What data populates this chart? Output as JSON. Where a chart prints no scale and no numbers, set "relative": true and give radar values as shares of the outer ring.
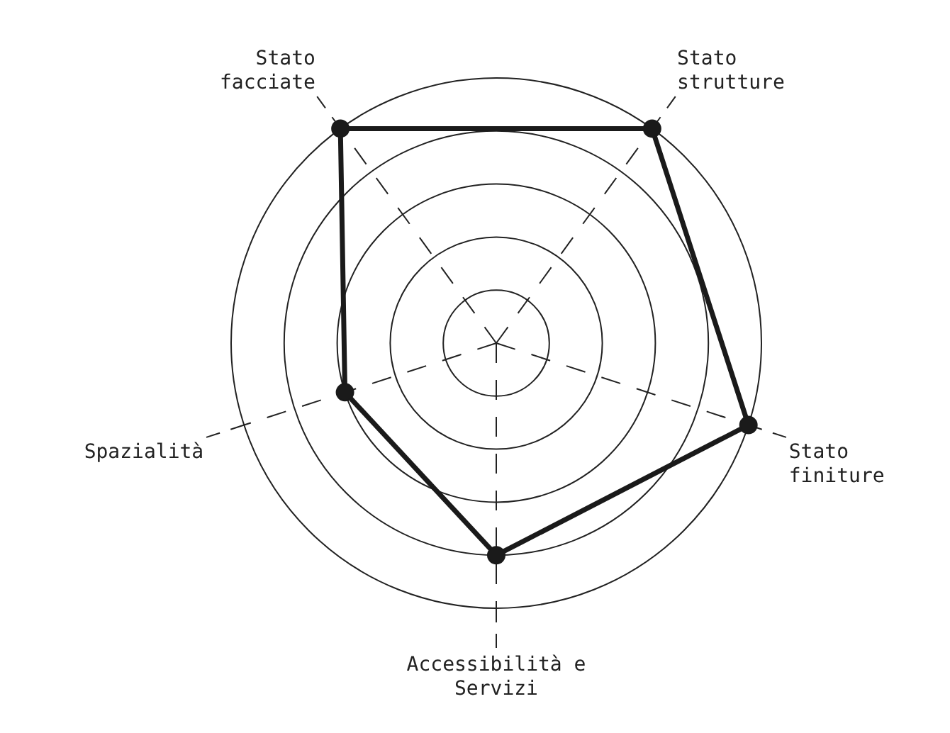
{
  "chart_data": {
    "type": "radar",
    "relative": true,
    "categories": [
      "Stato strutture",
      "Stato finiture",
      "Accessibilità e Servizi",
      "Spazialità",
      "Stato facciate"
    ],
    "series": [
      {
        "color": "#1a1a1a",
        "values": [
          1,
          1,
          0.8,
          0.6,
          1
        ]
      }
    ],
    "marker": "circle",
    "line_style": "solid",
    "grid": true
  }
}
